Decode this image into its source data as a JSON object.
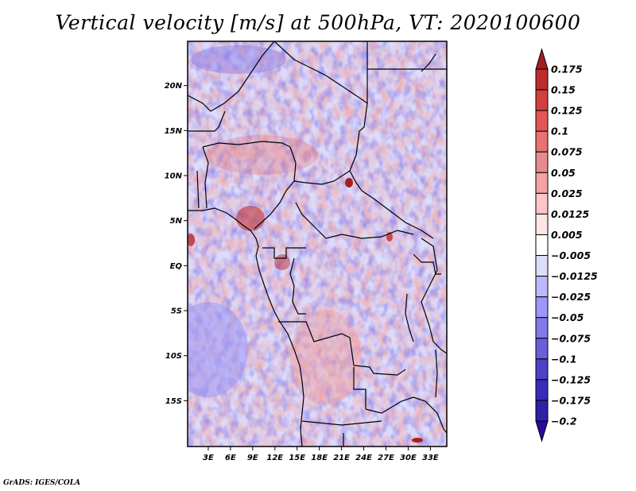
{
  "title": "Vertical velocity [m/s] at 500hPa, VT: 2020100600",
  "footer": "GrADS: IGES/COLA",
  "chart_data": {
    "type": "heatmap",
    "title": "Vertical velocity [m/s] at 500hPa, VT: 2020100600",
    "variable": "Vertical velocity",
    "units": "m/s",
    "level": "500hPa",
    "valid_time": "2020100600",
    "xlabel": "",
    "ylabel": "",
    "lon_range": [
      0,
      35
    ],
    "lat_range": [
      -20,
      25
    ],
    "x_ticks": [
      {
        "value": 3,
        "label": "3E"
      },
      {
        "value": 6,
        "label": "6E"
      },
      {
        "value": 9,
        "label": "9E"
      },
      {
        "value": 12,
        "label": "12E"
      },
      {
        "value": 15,
        "label": "15E"
      },
      {
        "value": 18,
        "label": "18E"
      },
      {
        "value": 21,
        "label": "21E"
      },
      {
        "value": 24,
        "label": "24E"
      },
      {
        "value": 27,
        "label": "27E"
      },
      {
        "value": 30,
        "label": "30E"
      },
      {
        "value": 33,
        "label": "33E"
      }
    ],
    "y_ticks": [
      {
        "value": 20,
        "label": "20N"
      },
      {
        "value": 15,
        "label": "15N"
      },
      {
        "value": 10,
        "label": "10N"
      },
      {
        "value": 5,
        "label": "5N"
      },
      {
        "value": 0,
        "label": "EQ"
      },
      {
        "value": -5,
        "label": "5S"
      },
      {
        "value": -10,
        "label": "10S"
      },
      {
        "value": -15,
        "label": "15S"
      }
    ],
    "grid": false,
    "legend_position": "right",
    "colorbar": {
      "levels": [
        {
          "label": "0.175",
          "color": "#a41e22"
        },
        {
          "label": "0.15",
          "color": "#be2b2e"
        },
        {
          "label": "0.125",
          "color": "#d23f3f"
        },
        {
          "label": "0.1",
          "color": "#e35656"
        },
        {
          "label": "0.075",
          "color": "#e97272"
        },
        {
          "label": "0.05",
          "color": "#e68a8d"
        },
        {
          "label": "0.025",
          "color": "#f3a3a3"
        },
        {
          "label": "0.0125",
          "color": "#fcc6c6"
        },
        {
          "label": "0.005",
          "color": "#fde6e6"
        },
        {
          "label": "-0.005",
          "color": "#ffffff"
        },
        {
          "label": "-0.0125",
          "color": "#dcdcfb"
        },
        {
          "label": "-0.025",
          "color": "#bcb8fb"
        },
        {
          "label": "-0.05",
          "color": "#9e97fb"
        },
        {
          "label": "-0.075",
          "color": "#8479ea"
        },
        {
          "label": "-0.1",
          "color": "#6a5edb"
        },
        {
          "label": "-0.125",
          "color": "#4e40c9"
        },
        {
          "label": "-0.175",
          "color": "#3b2bb9"
        },
        {
          "label": "-0.2",
          "color": "#2f20a8"
        }
      ],
      "top_arrow_color": "#a41e22",
      "bottom_arrow_color": "#2a0aa0"
    },
    "features": [
      {
        "name": "strong ascent (red) along Cameroon / Gulf of Guinea coast",
        "sign": "positive"
      },
      {
        "name": "strong ascent spot near Central African Republic / Chad border",
        "sign": "positive"
      },
      {
        "name": "broad descent (blue) over South Atlantic off Angola",
        "sign": "negative"
      },
      {
        "name": "mixed fine-scale pattern over Sahara",
        "sign": "mixed"
      }
    ]
  }
}
